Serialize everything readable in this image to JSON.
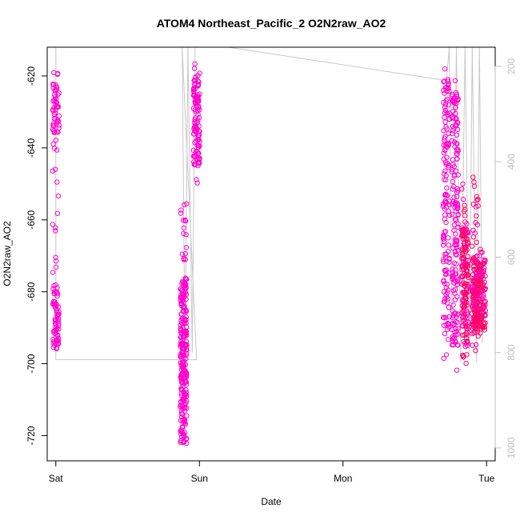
{
  "chart_data": {
    "type": "scatter",
    "title": "ATOM4 Northeast_Pacific_2 O2N2raw_AO2",
    "xlabel": "Date",
    "ylabel": "O2N2raw_AO2",
    "x_ticks": [
      {
        "label": "Sat",
        "day": 0
      },
      {
        "label": "Sun",
        "day": 1
      },
      {
        "label": "Mon",
        "day": 2
      },
      {
        "label": "Tue",
        "day": 3
      }
    ],
    "xlim_days": [
      -0.06,
      3.06
    ],
    "ylim": [
      -727,
      -612
    ],
    "yticks": [
      -620,
      -640,
      -660,
      -680,
      -700,
      -720
    ],
    "y2lim": [
      1027,
      160
    ],
    "y2ticks": [
      200,
      400,
      600,
      800,
      1000
    ],
    "grid": false,
    "point_color": "#FF00CC",
    "point_color_dense": "#FF0066",
    "line_color": "#c8c8c8",
    "clusters": [
      {
        "x_day": 0.0,
        "y_min": -697,
        "y_max": -614,
        "n": 90,
        "dense_low": -696,
        "dense_high": -678
      },
      {
        "x_day": 0.0,
        "y_min": -640,
        "y_max": -614,
        "n": 45,
        "dense_low": -636,
        "dense_high": -621
      },
      {
        "x_day": 0.89,
        "y_min": -723,
        "y_max": -653,
        "n": 260,
        "dense_low": -722,
        "dense_high": -676
      },
      {
        "x_day": 0.98,
        "y_min": -650,
        "y_max": -616,
        "n": 120,
        "dense_low": -645,
        "dense_high": -620
      },
      {
        "x_day": 2.72,
        "y_min": -700,
        "y_max": -617,
        "n": 140,
        "dense_low": -690,
        "dense_high": -620
      },
      {
        "x_day": 2.78,
        "y_min": -703,
        "y_max": -619,
        "n": 160,
        "dense_low": -695,
        "dense_high": -624
      },
      {
        "x_day": 2.85,
        "y_min": -700,
        "y_max": -650,
        "n": 170,
        "dense_low": -695,
        "dense_high": -662
      },
      {
        "x_day": 2.92,
        "y_min": -697,
        "y_max": -648,
        "n": 170,
        "dense_low": -692,
        "dense_high": -670
      },
      {
        "x_day": 2.97,
        "y_min": -692,
        "y_max": -668,
        "n": 110,
        "dense_low": -690,
        "dense_high": -672
      }
    ],
    "pressure_line": [
      {
        "x_day": 0.0,
        "p": 815
      },
      {
        "x_day": 0.0,
        "p": 160
      },
      {
        "x_day": 0.0,
        "p": 815
      },
      {
        "x_day": 0.98,
        "p": 815
      },
      {
        "x_day": 0.88,
        "p": 160
      },
      {
        "x_day": 0.9,
        "p": 815
      },
      {
        "x_day": 0.92,
        "p": 160
      },
      {
        "x_day": 0.95,
        "p": 800
      },
      {
        "x_day": 0.97,
        "p": 160
      },
      {
        "x_day": 1.2,
        "p": 160
      },
      {
        "x_day": 2.72,
        "p": 230
      },
      {
        "x_day": 2.74,
        "p": 160
      },
      {
        "x_day": 2.76,
        "p": 780
      },
      {
        "x_day": 2.79,
        "p": 160
      },
      {
        "x_day": 2.82,
        "p": 820
      },
      {
        "x_day": 2.85,
        "p": 160
      },
      {
        "x_day": 2.88,
        "p": 800
      },
      {
        "x_day": 2.9,
        "p": 160
      },
      {
        "x_day": 2.93,
        "p": 820
      },
      {
        "x_day": 2.95,
        "p": 160
      },
      {
        "x_day": 2.97,
        "p": 780
      }
    ]
  }
}
